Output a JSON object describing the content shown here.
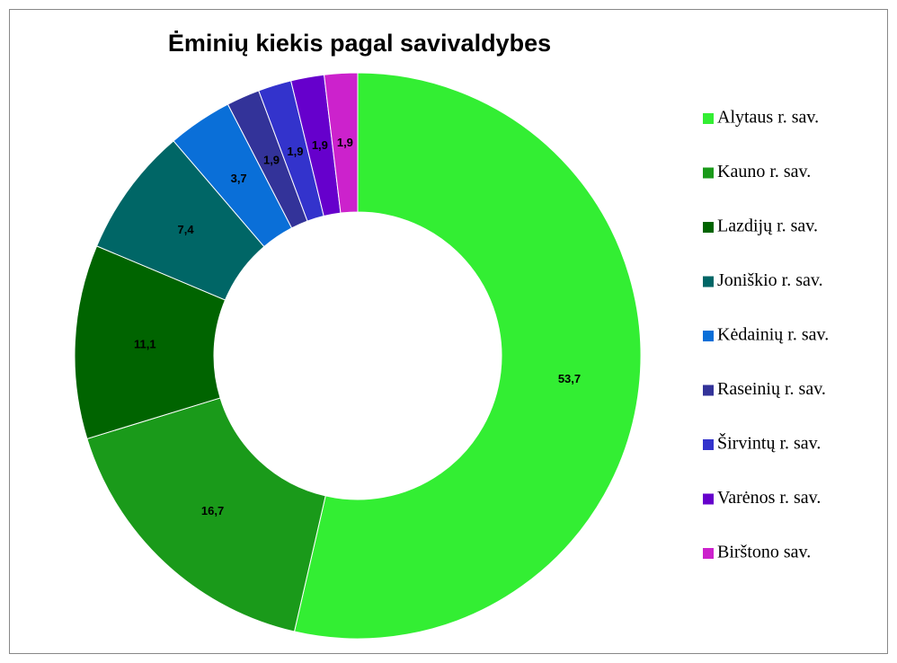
{
  "chart_data": {
    "type": "donut",
    "title": "Ėminių kiekis pagal savivaldybes",
    "categories": [
      "Alytaus r. sav.",
      "Kauno r. sav.",
      "Lazdijų r. sav.",
      "Joniškio r. sav.",
      "Kėdainių r. sav.",
      "Raseinių r. sav.",
      "Širvintų r. sav.",
      "Varėnos r. sav.",
      "Birštono sav."
    ],
    "values": [
      53.7,
      16.7,
      11.1,
      7.4,
      3.7,
      1.9,
      1.9,
      1.9,
      1.9
    ],
    "value_labels": [
      "53,7",
      "16,7",
      "11,1",
      "7,4",
      "3,7",
      "1,9",
      "1,9",
      "1,9",
      "1,9"
    ],
    "colors": [
      "#33ee33",
      "#1a9a1a",
      "#006400",
      "#006666",
      "#0a6fd8",
      "#333399",
      "#3333cc",
      "#6600cc",
      "#cc22cc"
    ],
    "legend": "right"
  }
}
